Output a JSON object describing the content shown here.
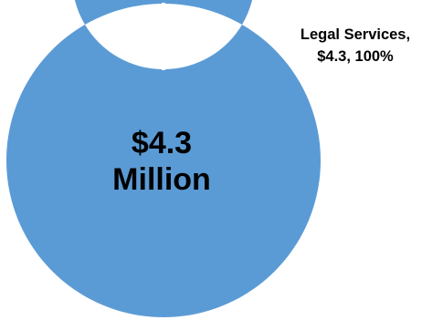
{
  "chart_data": {
    "type": "pie",
    "style": "donut",
    "center_label": {
      "line1": "$4.3",
      "line2": "Million"
    },
    "slices": [
      {
        "name": "Legal Services",
        "value": 4.3,
        "percent": 100,
        "label_line1": "Legal Services,",
        "label_line2": "$4.3, 100%",
        "color": "#5b9bd5"
      }
    ]
  }
}
